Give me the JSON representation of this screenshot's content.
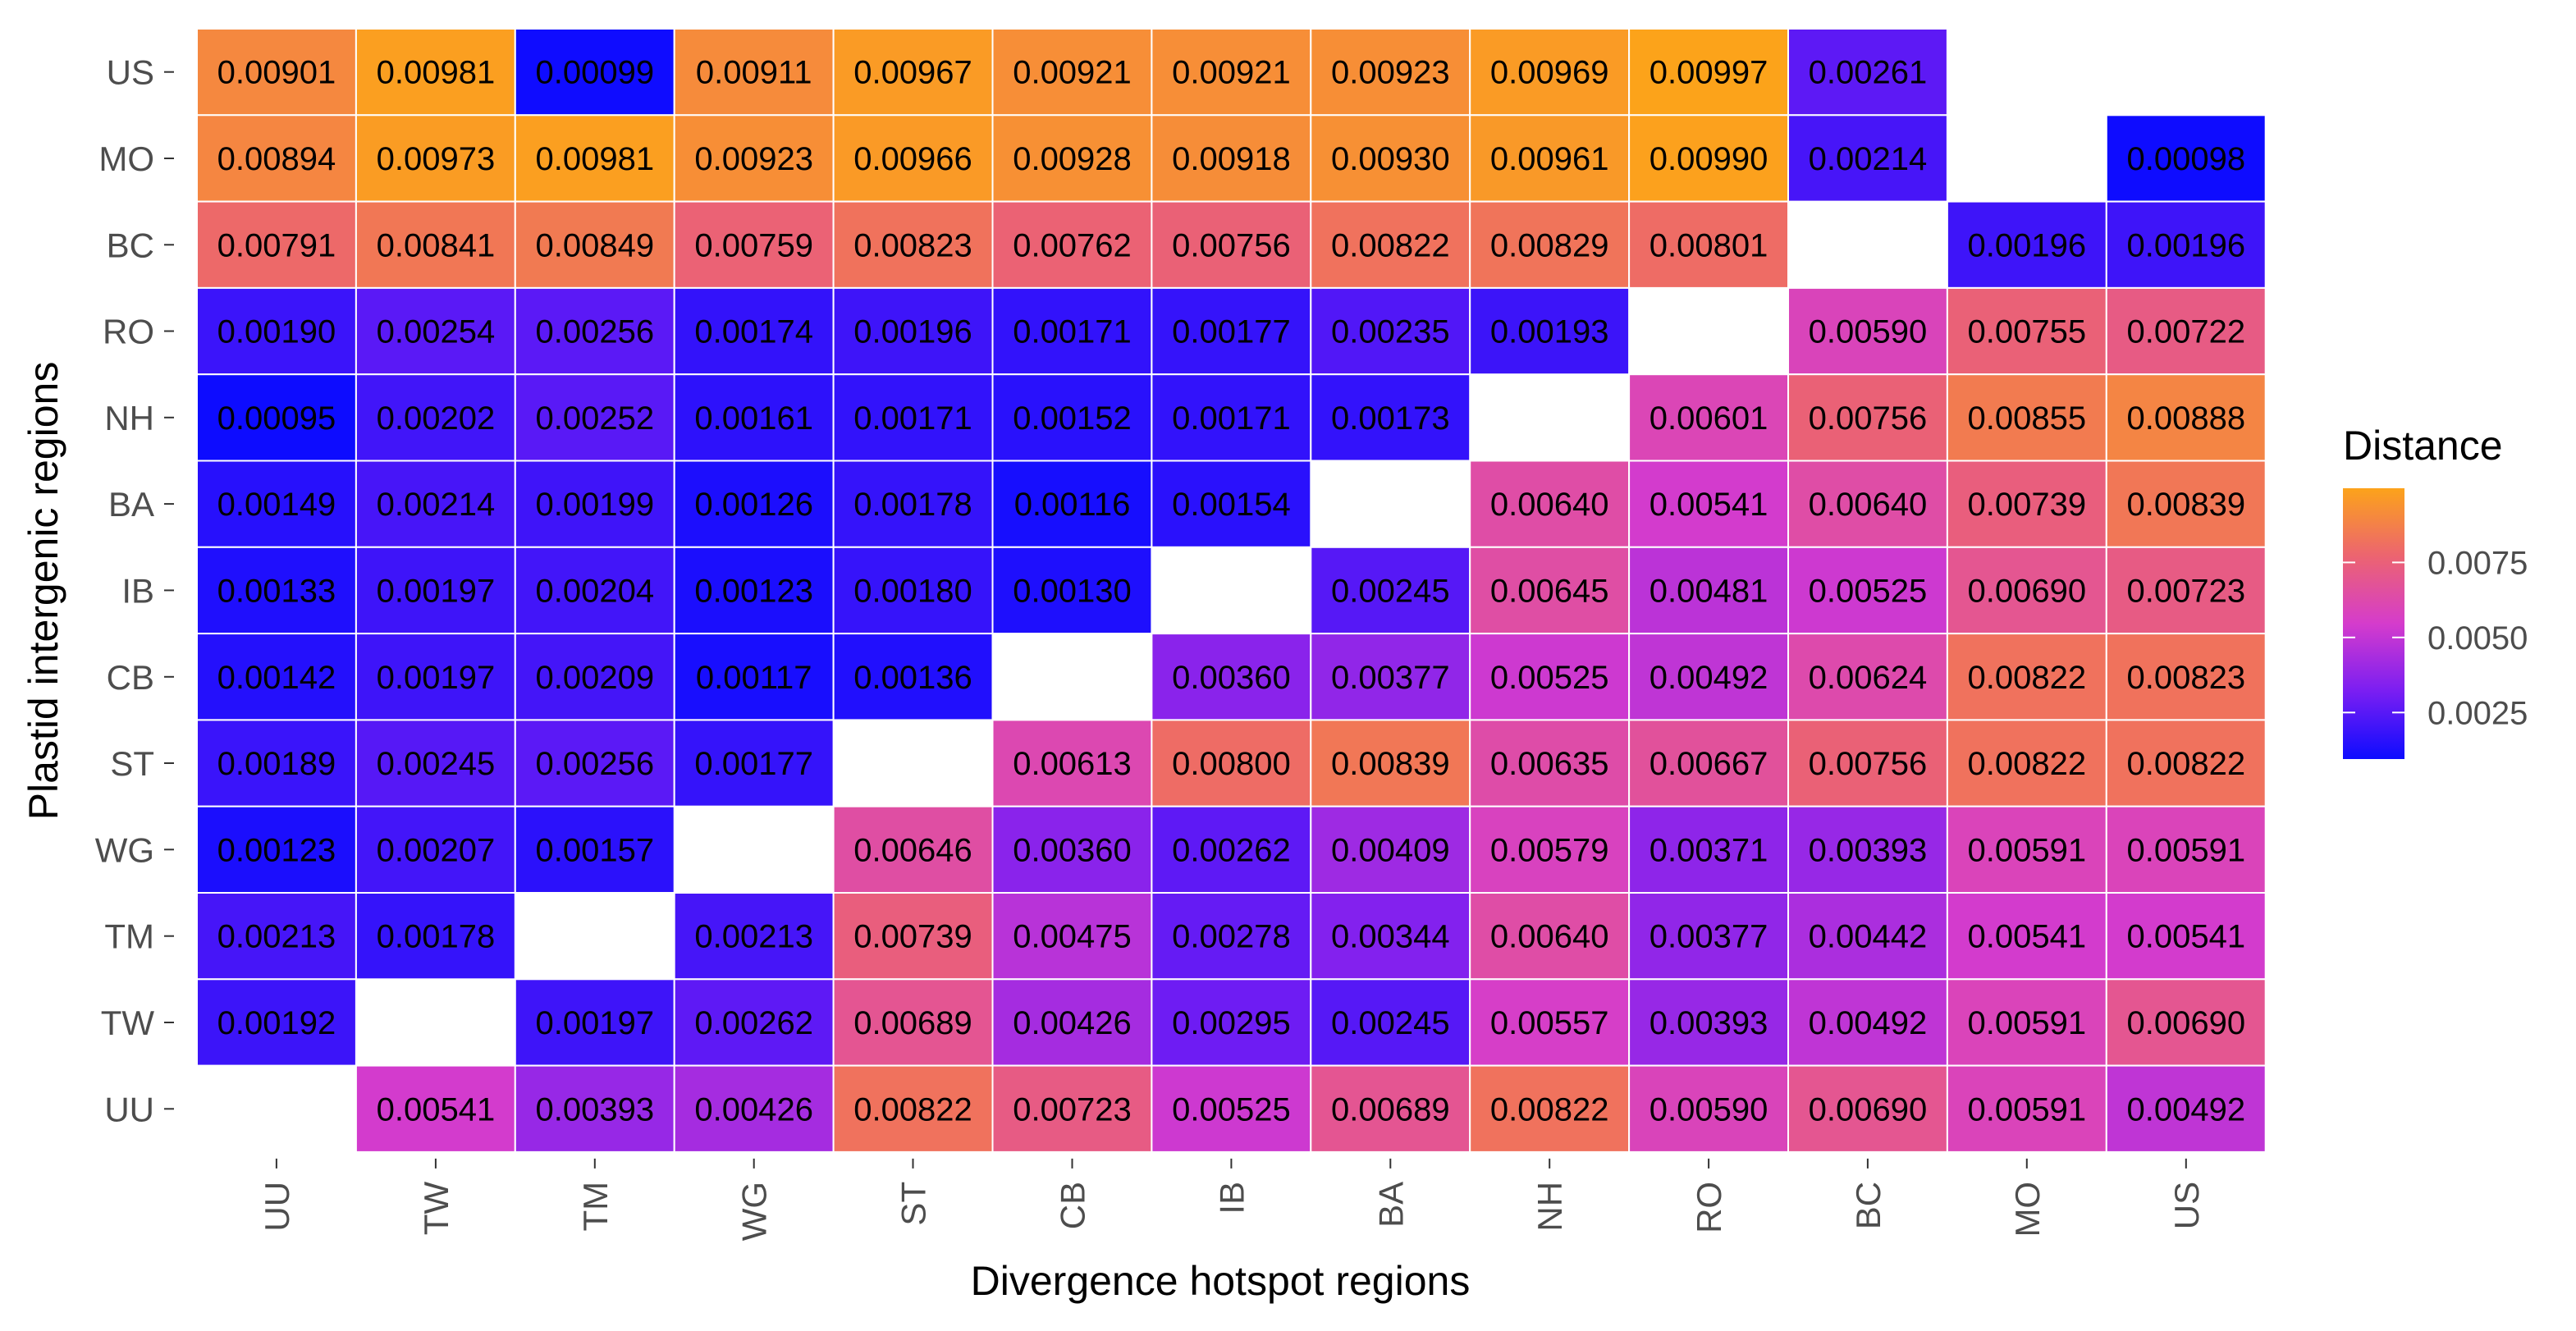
{
  "chart_data": {
    "type": "heatmap",
    "title": "",
    "xlabel": "Divergence hotspot regions",
    "ylabel": "Plastid intergenic regions",
    "x_categories": [
      "UU",
      "TW",
      "TM",
      "WG",
      "ST",
      "CB",
      "IB",
      "BA",
      "NH",
      "RO",
      "BC",
      "MO",
      "US"
    ],
    "y_categories_top_to_bottom": [
      "US",
      "MO",
      "BC",
      "RO",
      "NH",
      "BA",
      "IB",
      "CB",
      "ST",
      "WG",
      "TM",
      "TW",
      "UU"
    ],
    "values": [
      [
        "0.00901",
        "0.00981",
        "0.00099",
        "0.00911",
        "0.00967",
        "0.00921",
        "0.00921",
        "0.00923",
        "0.00969",
        "0.00997",
        "0.00261",
        null,
        null
      ],
      [
        "0.00894",
        "0.00973",
        "0.00981",
        "0.00923",
        "0.00966",
        "0.00928",
        "0.00918",
        "0.00930",
        "0.00961",
        "0.00990",
        "0.00214",
        null,
        "0.00098"
      ],
      [
        "0.00791",
        "0.00841",
        "0.00849",
        "0.00759",
        "0.00823",
        "0.00762",
        "0.00756",
        "0.00822",
        "0.00829",
        "0.00801",
        null,
        "0.00196",
        "0.00196"
      ],
      [
        "0.00190",
        "0.00254",
        "0.00256",
        "0.00174",
        "0.00196",
        "0.00171",
        "0.00177",
        "0.00235",
        "0.00193",
        null,
        "0.00590",
        "0.00755",
        "0.00722"
      ],
      [
        "0.00095",
        "0.00202",
        "0.00252",
        "0.00161",
        "0.00171",
        "0.00152",
        "0.00171",
        "0.00173",
        null,
        "0.00601",
        "0.00756",
        "0.00855",
        "0.00888"
      ],
      [
        "0.00149",
        "0.00214",
        "0.00199",
        "0.00126",
        "0.00178",
        "0.00116",
        "0.00154",
        null,
        "0.00640",
        "0.00541",
        "0.00640",
        "0.00739",
        "0.00839"
      ],
      [
        "0.00133",
        "0.00197",
        "0.00204",
        "0.00123",
        "0.00180",
        "0.00130",
        null,
        "0.00245",
        "0.00645",
        "0.00481",
        "0.00525",
        "0.00690",
        "0.00723"
      ],
      [
        "0.00142",
        "0.00197",
        "0.00209",
        "0.00117",
        "0.00136",
        null,
        "0.00360",
        "0.00377",
        "0.00525",
        "0.00492",
        "0.00624",
        "0.00822",
        "0.00823"
      ],
      [
        "0.00189",
        "0.00245",
        "0.00256",
        "0.00177",
        null,
        "0.00613",
        "0.00800",
        "0.00839",
        "0.00635",
        "0.00667",
        "0.00756",
        "0.00822",
        "0.00822"
      ],
      [
        "0.00123",
        "0.00207",
        "0.00157",
        null,
        "0.00646",
        "0.00360",
        "0.00262",
        "0.00409",
        "0.00579",
        "0.00371",
        "0.00393",
        "0.00591",
        "0.00591"
      ],
      [
        "0.00213",
        "0.00178",
        null,
        "0.00213",
        "0.00739",
        "0.00475",
        "0.00278",
        "0.00344",
        "0.00640",
        "0.00377",
        "0.00442",
        "0.00541",
        "0.00541"
      ],
      [
        "0.00192",
        null,
        "0.00197",
        "0.00262",
        "0.00689",
        "0.00426",
        "0.00295",
        "0.00245",
        "0.00557",
        "0.00393",
        "0.00492",
        "0.00591",
        "0.00690"
      ],
      [
        null,
        "0.00541",
        "0.00393",
        "0.00426",
        "0.00822",
        "0.00723",
        "0.00525",
        "0.00689",
        "0.00822",
        "0.00590",
        "0.00690",
        "0.00591",
        "0.00492"
      ]
    ],
    "legend": {
      "title": "Distance",
      "ticks": [
        "0.0025",
        "0.0050",
        "0.0075"
      ],
      "range": [
        0.00095,
        0.00997
      ]
    },
    "colors": {
      "low": "#0d0cff",
      "mid1": "#7a1ef2",
      "mid2": "#d53ccc",
      "mid3": "#ec6470",
      "high": "#fca31a"
    }
  }
}
